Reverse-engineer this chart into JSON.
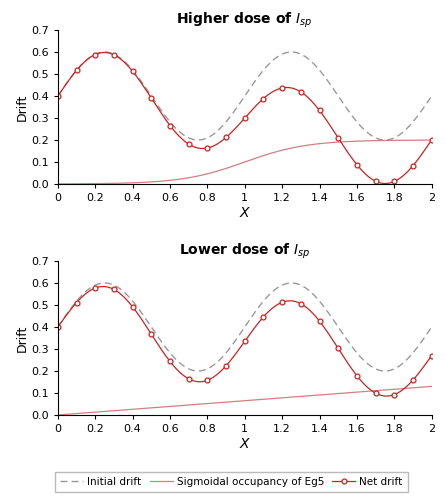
{
  "title_upper": "Higher dose of $I_{sp}$",
  "title_lower": "Lower dose of $I_{sp}$",
  "xlabel": "X",
  "ylabel": "Drift",
  "xlim": [
    0,
    2
  ],
  "ylim": [
    0,
    0.7
  ],
  "yticks": [
    0,
    0.1,
    0.2,
    0.3,
    0.4,
    0.5,
    0.6,
    0.7
  ],
  "xticks": [
    0,
    0.2,
    0.4,
    0.6,
    0.8,
    1.0,
    1.2,
    1.4,
    1.6,
    1.8,
    2.0
  ],
  "xtick_labels": [
    "0",
    "0.2",
    "0.4",
    "0.6",
    "0.8",
    "1",
    "1.2",
    "1.4",
    "1.6",
    "1.8",
    "2"
  ],
  "initial_drift_color": "#999999",
  "sigmoidal_color_high": "#d08080",
  "sigmoidal_color_low": "#d08080",
  "net_drift_color": "#cc2222",
  "background_color": "#ffffff",
  "legend_labels": [
    "Initial drift",
    "Sigmoidal occupancy of Eg5",
    "Net drift"
  ],
  "n_markers": 21
}
